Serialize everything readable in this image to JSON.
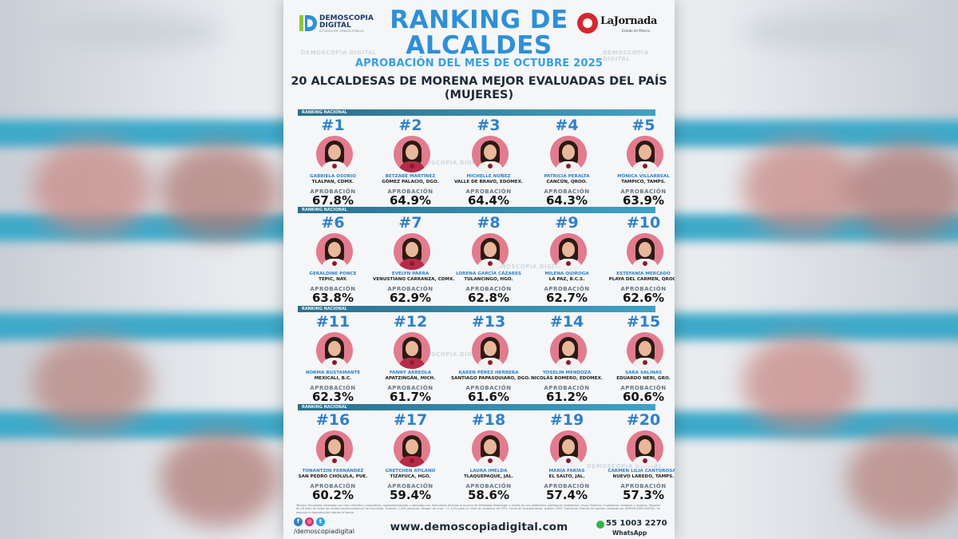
{
  "header": {
    "title_line1": "RANKING DE",
    "title_line2": "ALCALDES",
    "title_line3": "APROBACIÓN DEL MES DE OCTUBRE 2025",
    "subtitle_line1": "20 ALCALDESAS DE MORENA MEJOR EVALUADAS DEL PAÍS",
    "subtitle_line2": "(MUJERES)"
  },
  "logo_left": {
    "line1": "DEMOSCOPIA",
    "line2": "DIGITAL",
    "tagline": "ESTUDIOS DE OPINIÓN PÚBLICA",
    "accent": "#8cc63f",
    "color": "#1e3a6b"
  },
  "logo_right": {
    "name": "LaJornada",
    "sub": "Estado de México",
    "color": "#d7262e"
  },
  "watermark": "DEMOSCOPIA DIGITAL",
  "section_label": "RANKING NACIONAL",
  "approval_label": "APROBACIÓN",
  "rankings": [
    {
      "rank": "#1",
      "name": "GABRIELA OSORIO",
      "place": "TLALPAN, CDMX.",
      "approval": "67.8%"
    },
    {
      "rank": "#2",
      "name": "BETZABÉ MARTÍNEZ",
      "place": "GÓMEZ PALACIO, DGO.",
      "approval": "64.9%"
    },
    {
      "rank": "#3",
      "name": "MICHELLE NÚÑEZ",
      "place": "VALLE DE BRAVO, EDOMEX.",
      "approval": "64.4%"
    },
    {
      "rank": "#4",
      "name": "PATRICIA PERALTA",
      "place": "CANCÚN, QROO.",
      "approval": "64.3%"
    },
    {
      "rank": "#5",
      "name": "MÓNICA VILLARREAL",
      "place": "TAMPICO, TAMPS.",
      "approval": "63.9%"
    },
    {
      "rank": "#6",
      "name": "GERALDINE PONCE",
      "place": "TEPIC, NAY.",
      "approval": "63.8%"
    },
    {
      "rank": "#7",
      "name": "EVELYN PARRA",
      "place": "VENUSTIANO CARRANZA, CDMX.",
      "approval": "62.9%"
    },
    {
      "rank": "#8",
      "name": "LORENA GARCÍA CÁZARES",
      "place": "TULANCINGO, HGO.",
      "approval": "62.8%"
    },
    {
      "rank": "#9",
      "name": "MILENA QUIROGA",
      "place": "LA PAZ, B.C.S.",
      "approval": "62.7%"
    },
    {
      "rank": "#10",
      "name": "ESTEFANÍA MERCADO",
      "place": "PLAYA DEL CARMEN, QROO.",
      "approval": "62.6%"
    },
    {
      "rank": "#11",
      "name": "NORMA BUSTAMANTE",
      "place": "MEXICALI, B.C.",
      "approval": "62.3%"
    },
    {
      "rank": "#12",
      "name": "FANNY ARREOLA",
      "place": "APATZINGÁN, MICH.",
      "approval": "61.7%"
    },
    {
      "rank": "#13",
      "name": "KAREN PÉREZ HERRERA",
      "place": "SANTIAGO PAPASQUIARO, DGO.",
      "approval": "61.6%"
    },
    {
      "rank": "#14",
      "name": "YOSELIN MENDOZA",
      "place": "NICOLÁS ROMERO, EDOMEX.",
      "approval": "61.2%"
    },
    {
      "rank": "#15",
      "name": "SARA SALINAS",
      "place": "EDUARDO NERI, GRO.",
      "approval": "60.6%"
    },
    {
      "rank": "#16",
      "name": "TONANTZIN FERNÁNDEZ",
      "place": "SAN PEDRO CHOLULA, PUE.",
      "approval": "60.2%"
    },
    {
      "rank": "#17",
      "name": "GRETCHEN ATILANO",
      "place": "TIZAYUCA, HGO.",
      "approval": "59.4%"
    },
    {
      "rank": "#18",
      "name": "LAURA IMELDA",
      "place": "TLAQUEPAQUE, JAL.",
      "approval": "58.6%"
    },
    {
      "rank": "#19",
      "name": "MARÍA FARÍAS",
      "place": "EL SALTO, JAL.",
      "approval": "57.4%"
    },
    {
      "rank": "#20",
      "name": "CARMEN LILIA CANTUROSAS",
      "place": "NUEVO LAREDO, TAMPS.",
      "approval": "57.3%"
    }
  ],
  "footer": {
    "note": "Técnica: Encuestas realizadas con rigor científico y estadístico, autoadministradas y aplicadas con formularios directos al usuario de WhatsApp Messenger a través de una plataforma profesional multigestor. Grupo Objetivo: Ciudadanos, hombres y mujeres. Mayores de 18 años de todos los niveles socioeconómicos del municipio. Muestra: 1,000 personas. Margen de error: +/- 3.1% para un nivel de confianza del 95%. Fecha de levantamiento: octubre 2025. Patrocinio: Estudio de opinión realizado por DEMOSCOPIA DIGITAL. Se autoriza su reproducción citando la fuente.",
    "handle": "/demoscopiadigital",
    "website": "www.demoscopiadigital.com",
    "phone": "55 1003 2270",
    "whatsapp_label": "WhatsApp",
    "social_icons": [
      "facebook-icon",
      "instagram-icon",
      "twitter-icon"
    ],
    "social_glyphs": [
      "f",
      "◎",
      "t"
    ]
  }
}
